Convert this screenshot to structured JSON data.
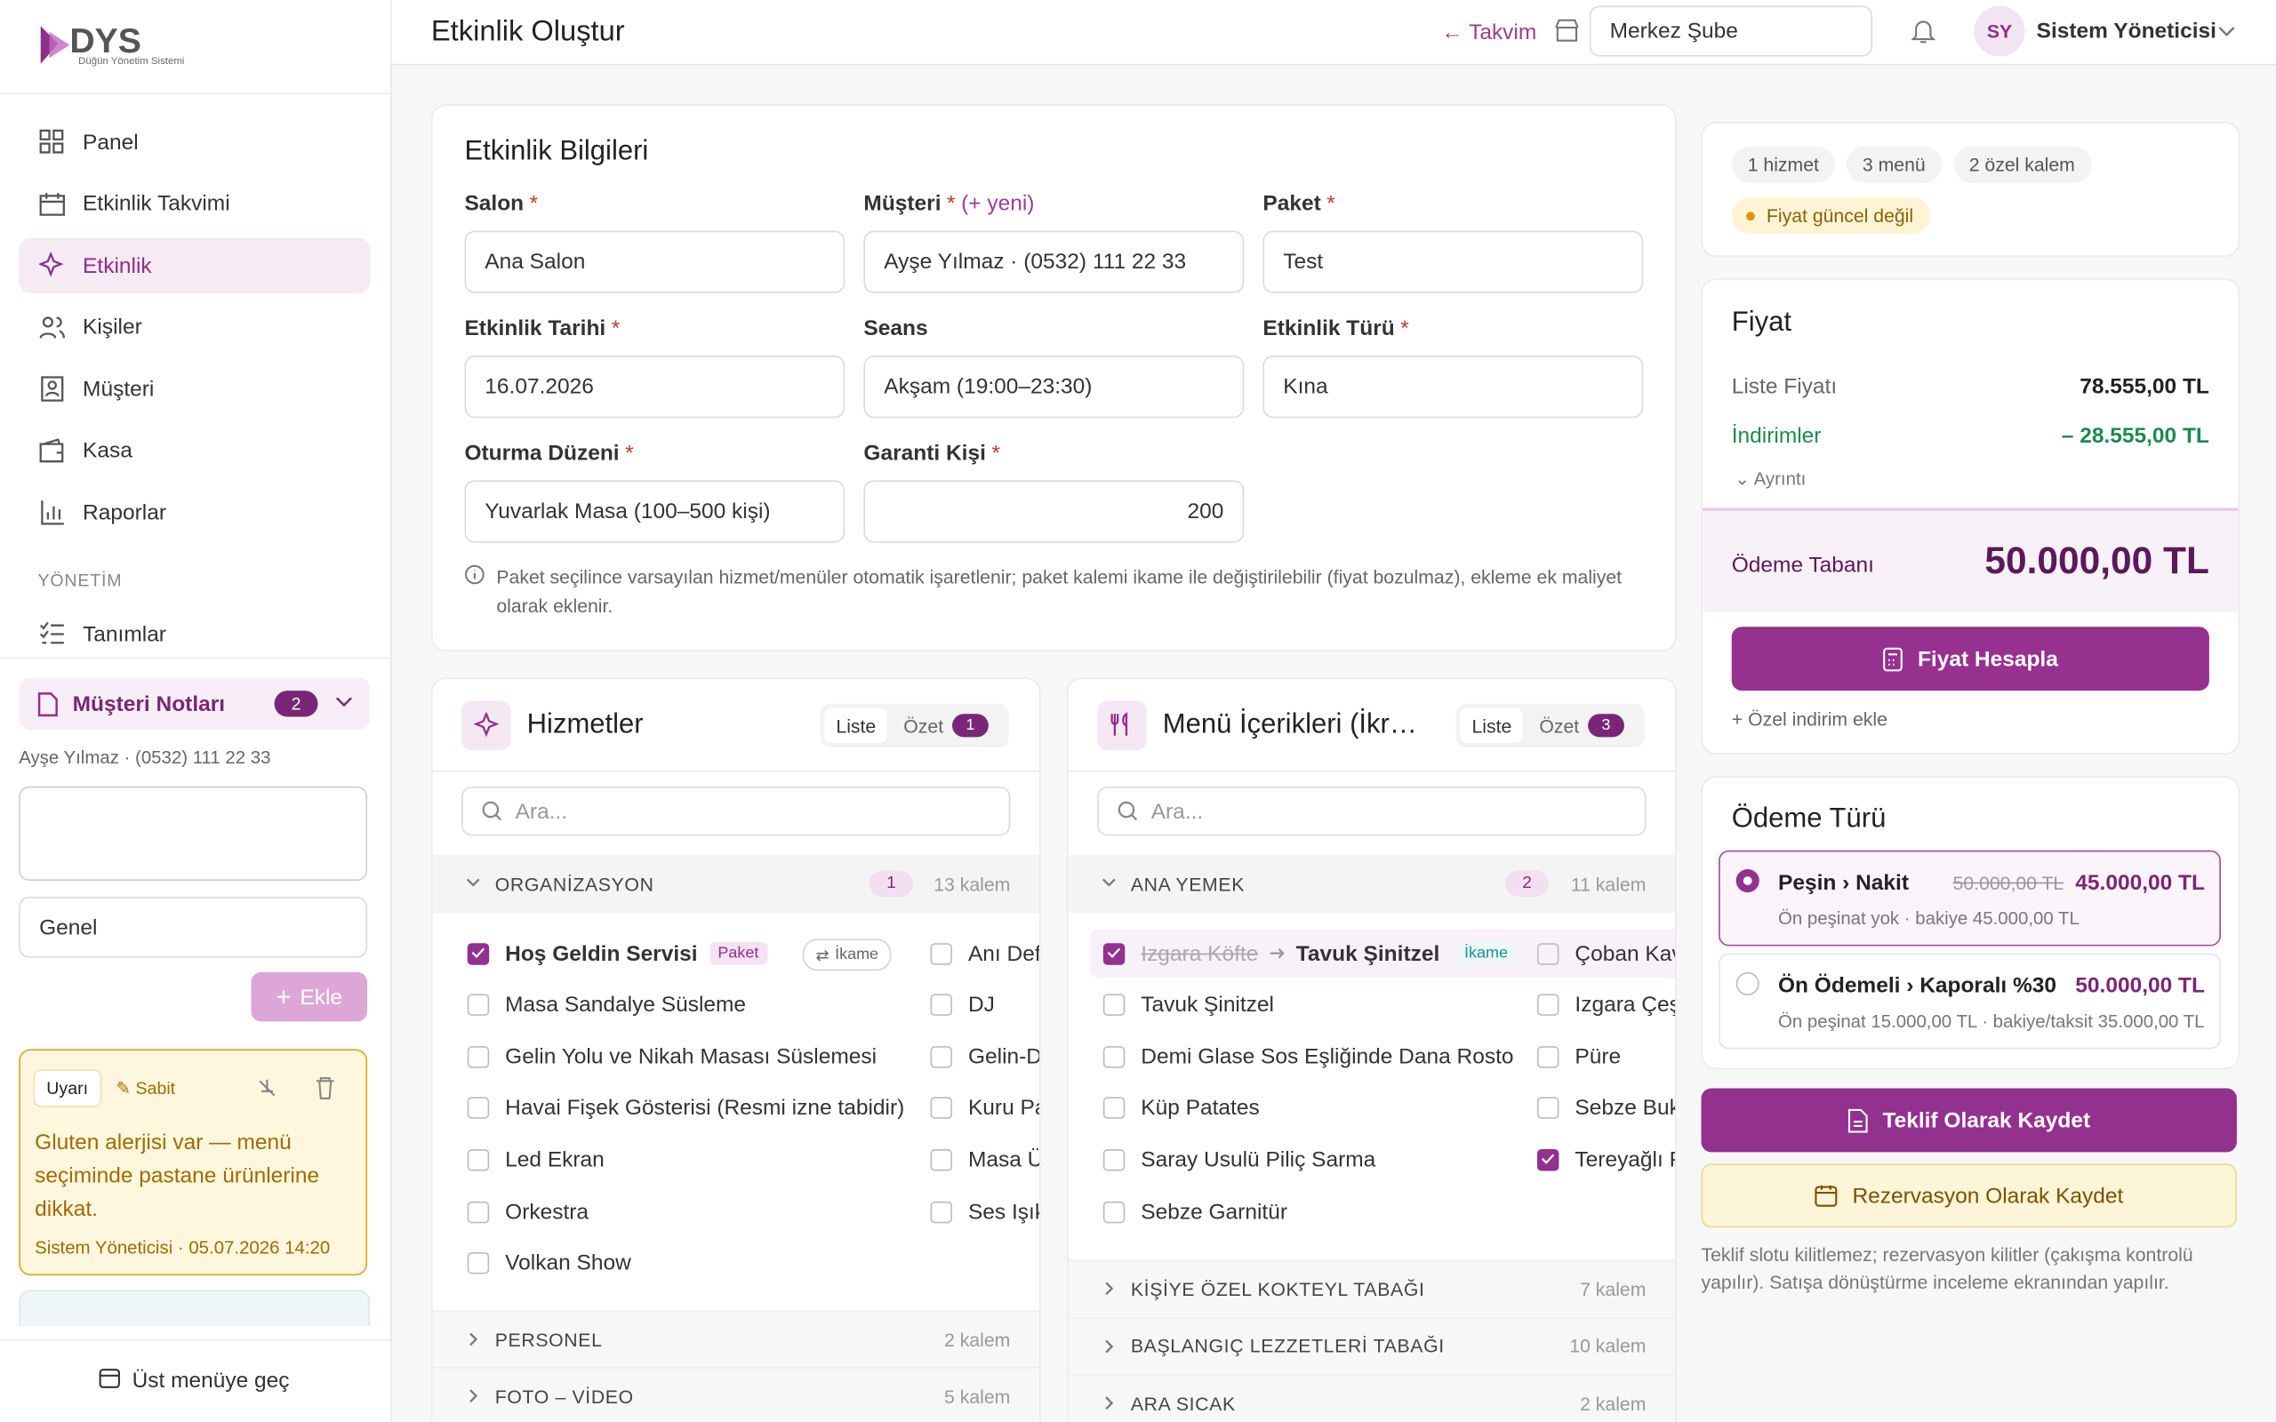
{
  "sidebar": {
    "logo": "DYS",
    "logo_sub": "Düğün Yönetim Sistemi",
    "nav": [
      {
        "label": "Panel"
      },
      {
        "label": "Etkinlik Takvimi"
      },
      {
        "label": "Etkinlik",
        "active": true
      },
      {
        "label": "Kişiler"
      },
      {
        "label": "Müşteri"
      },
      {
        "label": "Kasa"
      },
      {
        "label": "Raporlar"
      }
    ],
    "section": "YÖNETİM",
    "admin_nav": [
      {
        "label": "Tanımlar"
      }
    ],
    "notes": {
      "title": "Müşteri Notları",
      "count": 2,
      "customer": "Ayşe Yılmaz · (0532) 111 22 33",
      "category": "Genel",
      "add": "Ekle",
      "note": {
        "tag": "Uyarı",
        "pin": "Sabit",
        "text": "Gluten alerjisi var — menü seçiminde pastane ürünlerine dikkat.",
        "meta": "Sistem Yöneticisi · 05.07.2026 14:20"
      }
    },
    "footer": "Üst menüye geç"
  },
  "header": {
    "title": "Etkinlik Oluştur",
    "back": "← Takvim",
    "branch": "Merkez Şube",
    "avatar": "SY",
    "user": "Sistem Yöneticisi"
  },
  "form": {
    "title": "Etkinlik Bilgileri",
    "required_mark": "*",
    "fields": [
      {
        "label": "Salon",
        "required": true,
        "value": "Ana Salon"
      },
      {
        "label": "Müşteri",
        "required": true,
        "link": "(+ yeni)",
        "value": "Ayşe Yılmaz · (0532) 111 22 33"
      },
      {
        "label": "Paket",
        "required": true,
        "value": "Test"
      },
      {
        "label": "Etkinlik Tarihi",
        "required": true,
        "value": "16.07.2026"
      },
      {
        "label": "Seans",
        "required": false,
        "value": "Akşam (19:00–23:30)"
      },
      {
        "label": "Etkinlik Türü",
        "required": true,
        "value": "Kına"
      },
      {
        "label": "Oturma Düzeni",
        "required": true,
        "value": "Yuvarlak Masa (100–500 kişi)"
      },
      {
        "label": "Garanti Kişi",
        "required": true,
        "value": 200
      }
    ],
    "note": "Paket seçilince varsayılan hizmet/menüler otomatik işaretlenir; paket kalemi ikame ile değiştirilebilir (fiyat bozulmaz), ekleme ek maliyet olarak eklenir."
  },
  "panels": [
    {
      "title": "Hizmetler",
      "tabs": [
        "Liste",
        "Özet"
      ],
      "summary_count": 1,
      "search": "Ara...",
      "open_group": {
        "title": "ORGANİZASYON",
        "selected": 1,
        "count": "13 kalem",
        "left": [
          {
            "label": "Hoş Geldin Servisi",
            "checked": true,
            "badge": "Paket",
            "action": "İkame"
          },
          {
            "label": "Masa Sandalye Süsleme",
            "checked": false
          },
          {
            "label": "Gelin Yolu ve Nikah Masası Süslemesi",
            "checked": false
          },
          {
            "label": "Havai Fişek Gösterisi (Resmi izne tabidir)",
            "checked": false
          },
          {
            "label": "Led Ekran",
            "checked": false
          },
          {
            "label": "Orkestra",
            "checked": false
          },
          {
            "label": "Volkan Show",
            "checked": false
          }
        ],
        "right": [
          {
            "label": "Anı Def",
            "checked": false
          },
          {
            "label": "DJ",
            "checked": false
          },
          {
            "label": "Gelin-D",
            "checked": false
          },
          {
            "label": "Kuru Pa",
            "checked": false
          },
          {
            "label": "Masa Ü",
            "checked": false
          },
          {
            "label": "Ses Işık",
            "checked": false
          }
        ]
      },
      "groups": [
        {
          "title": "PERSONEL",
          "count": "2 kalem"
        },
        {
          "title": "FOTO – VİDEO",
          "count": "5 kalem"
        }
      ]
    },
    {
      "title": "Menü İçerikleri (İkr…",
      "tabs": [
        "Liste",
        "Özet"
      ],
      "summary_count": 3,
      "search": "Ara...",
      "open_group": {
        "title": "ANA YEMEK",
        "selected": 2,
        "count": "11 kalem",
        "left": [
          {
            "replaced": "Izgara Köfte",
            "label": "Tavuk Şinitzel",
            "checked": true,
            "note": "İkame"
          },
          {
            "label": "Tavuk Şinitzel",
            "checked": false
          },
          {
            "label": "Demi Glase Sos Eşliğinde Dana Rosto",
            "checked": false
          },
          {
            "label": "Küp Patates",
            "checked": false
          },
          {
            "label": "Saray Usulü Piliç Sarma",
            "checked": false
          },
          {
            "label": "Sebze Garnitür",
            "checked": false
          }
        ],
        "right": [
          {
            "label": "Çoban Kav",
            "checked": false
          },
          {
            "label": "Izgara Çeş",
            "checked": false
          },
          {
            "label": "Püre",
            "checked": false
          },
          {
            "label": "Sebze Buk",
            "checked": false
          },
          {
            "label": "Tereyağlı P",
            "checked": true
          }
        ]
      },
      "groups": [
        {
          "title": "KİŞİYE ÖZEL KOKTEYL TABAĞI",
          "count": "7 kalem"
        },
        {
          "title": "BAŞLANGIÇ LEZZETLERİ TABAĞI",
          "count": "10 kalem"
        },
        {
          "title": "ARA SICAK",
          "count": "2 kalem"
        }
      ]
    }
  ],
  "summary": {
    "chips": [
      "1 hizmet",
      "3 menü",
      "2 özel kalem"
    ],
    "warning": "Fiyat güncel değil"
  },
  "price": {
    "title": "Fiyat",
    "rows": [
      {
        "label": "Liste Fiyatı",
        "value": "78.555,00 TL"
      },
      {
        "label": "İndirimler",
        "value": "– 28.555,00 TL",
        "color": "#1f8a4c"
      }
    ],
    "details": "Ayrıntı",
    "base_label": "Ödeme Tabanı",
    "base_value": "50.000,00 TL",
    "button": "Fiyat Hesapla",
    "discount": "Özel indirim ekle"
  },
  "payment": {
    "title": "Ödeme Türü",
    "options": [
      {
        "title": "Peşin › Nakit",
        "old": "50.000,00 TL",
        "price": "45.000,00 TL",
        "sub": "Ön peşinat yok · bakiye 45.000,00 TL",
        "selected": true
      },
      {
        "title": "Ön Ödemeli › Kaporalı %30",
        "price": "50.000,00 TL",
        "sub": "Ön peşinat 15.000,00 TL · bakiye/taksit 35.000,00 TL",
        "selected": false
      }
    ]
  },
  "actions": {
    "offer": "Teklif Olarak Kaydet",
    "reservation": "Rezervasyon Olarak Kaydet",
    "note": "Teklif slotu kilitlemez; rezervasyon kilitler (çakışma kontrolü yapılır). Satışa dönüştürme inceleme ekranından yapılır."
  }
}
